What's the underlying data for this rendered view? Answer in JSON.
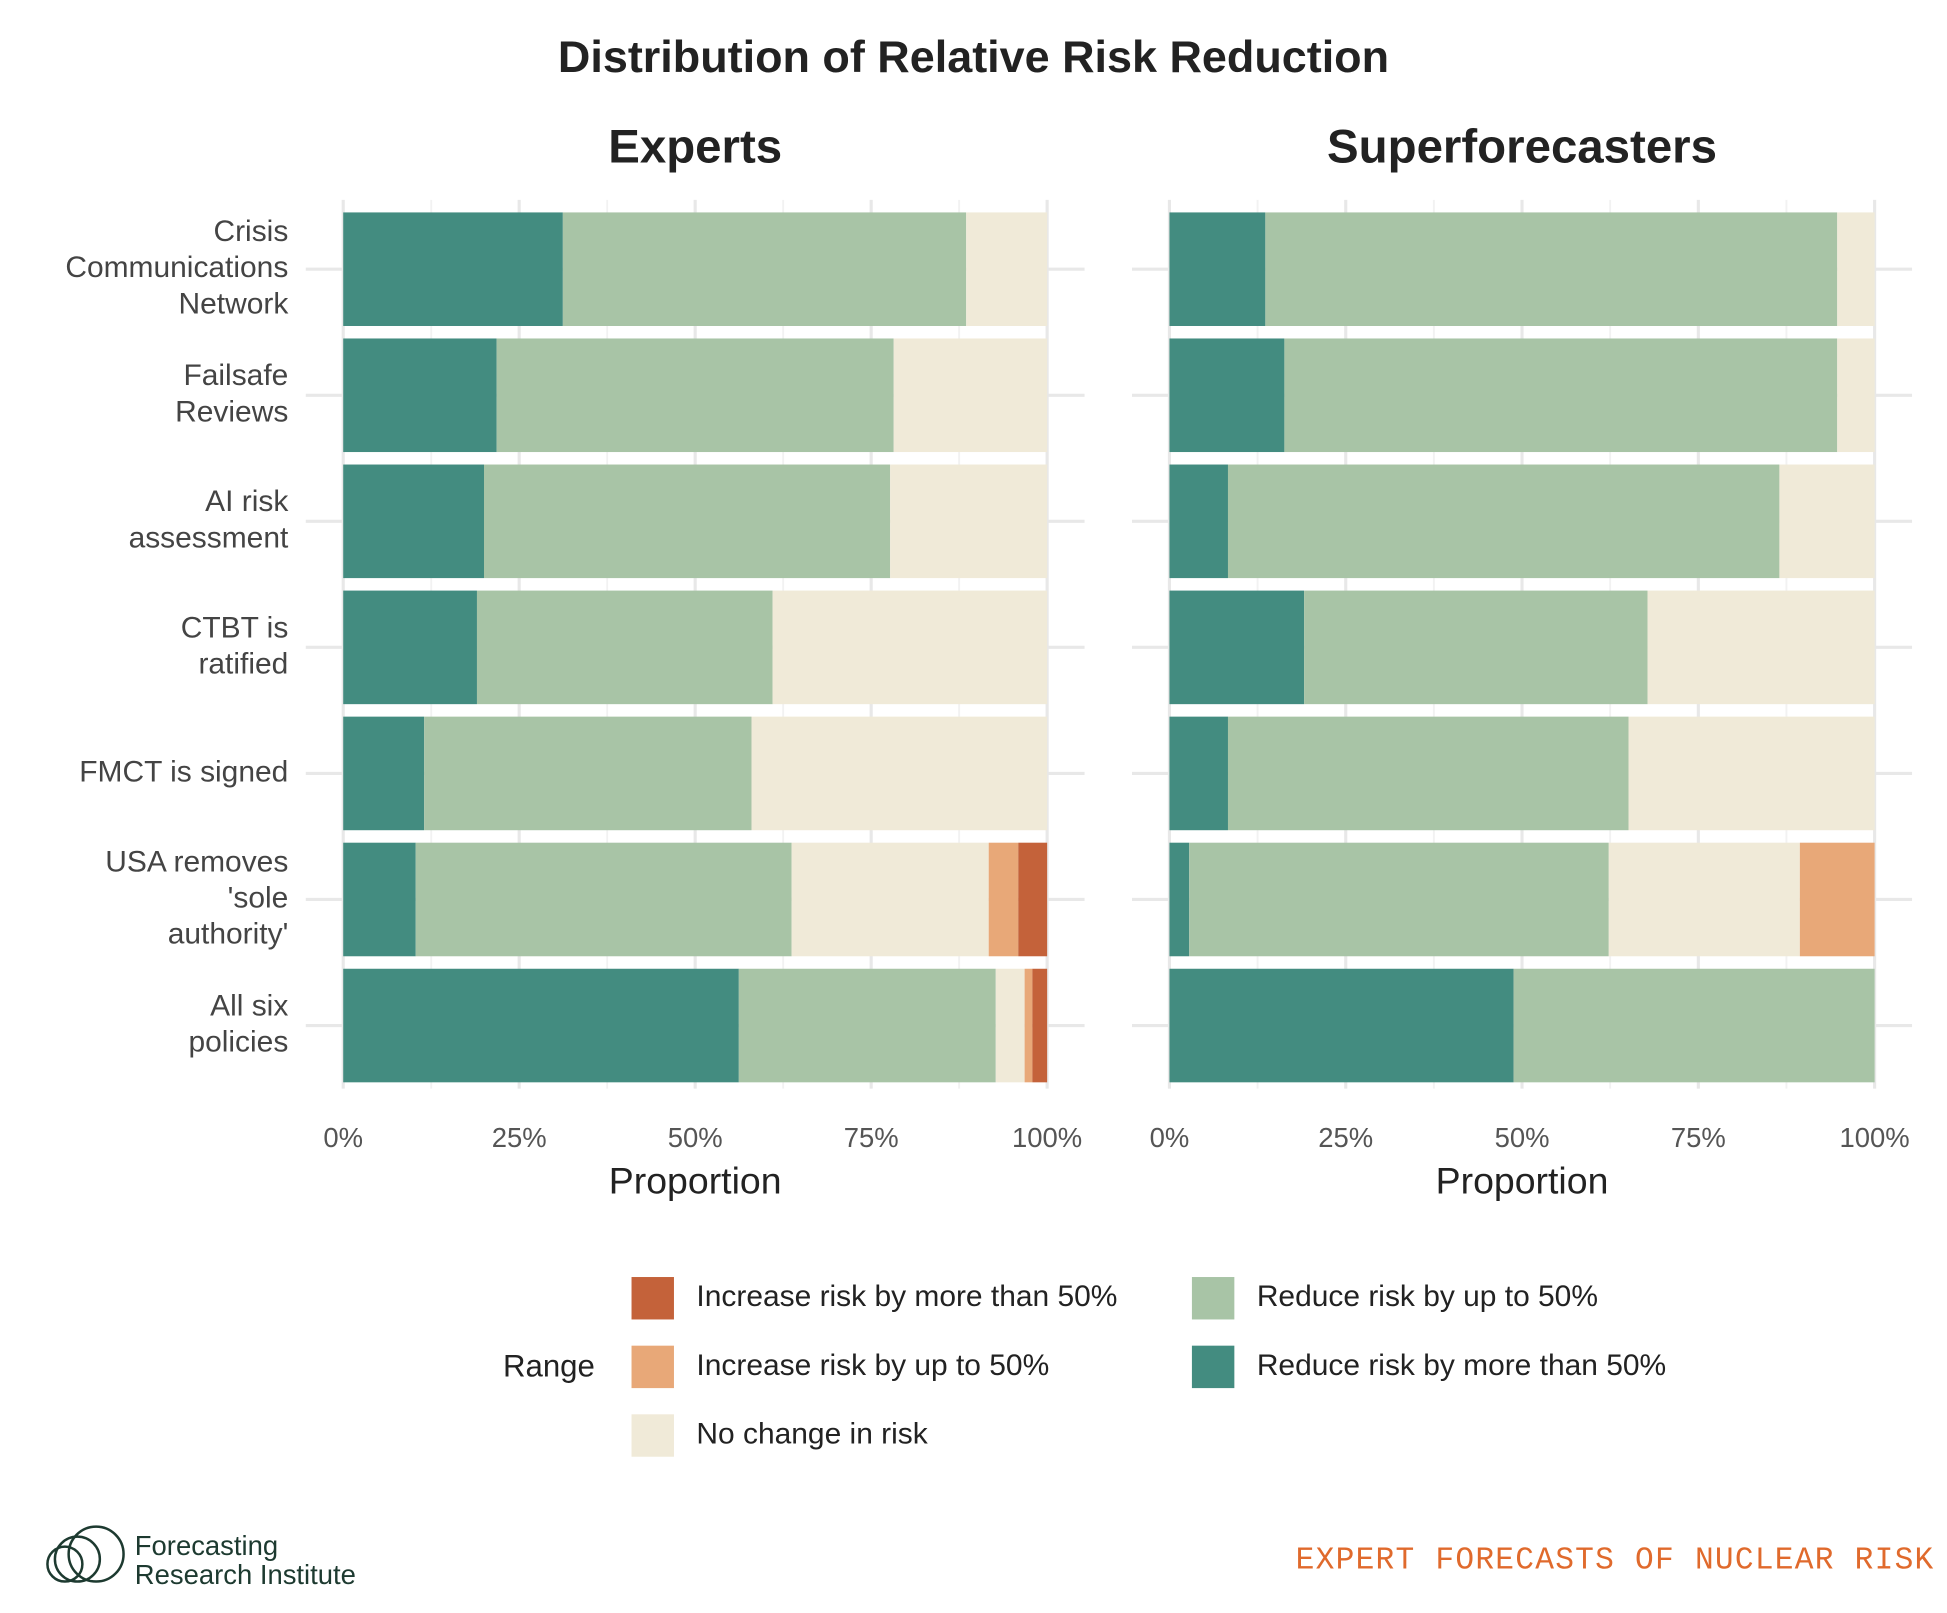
{
  "title": "Distribution of Relative Risk Reduction",
  "legend_title": "Range",
  "footer": {
    "logo_line1": "Forecasting",
    "logo_line2": "Research Institute",
    "tagline": "EXPERT FORECASTS OF NUCLEAR RISK"
  },
  "chart_data": [
    {
      "type": "bar",
      "orientation": "horizontal",
      "stacked": true,
      "title": "Experts",
      "xlabel": "Proportion",
      "categories": [
        "Crisis\nCommunications\nNetwork",
        "Failsafe\nReviews",
        "AI risk\nassessment",
        "CTBT is\nratified",
        "FMCT is signed",
        "USA removes\n'sole\nauthority'",
        "All six\npolicies"
      ],
      "series": [
        {
          "name": "Reduce risk by more than 50%",
          "color": "#438c80",
          "values": [
            31.2,
            21.8,
            20.0,
            19.0,
            11.5,
            10.3,
            56.2
          ]
        },
        {
          "name": "Reduce risk by up to 50%",
          "color": "#a8c4a6",
          "values": [
            57.3,
            56.4,
            57.7,
            42.0,
            46.5,
            53.4,
            36.5
          ]
        },
        {
          "name": "No change in risk",
          "color": "#f0ead8",
          "values": [
            11.5,
            21.8,
            22.3,
            39.0,
            42.0,
            28.0,
            4.1
          ]
        },
        {
          "name": "Increase risk by up to 50%",
          "color": "#e8a878",
          "values": [
            0,
            0,
            0,
            0,
            0,
            4.2,
            1.1
          ]
        },
        {
          "name": "Increase risk by more than 50%",
          "color": "#c4623a",
          "values": [
            0,
            0,
            0,
            0,
            0,
            4.1,
            2.1
          ]
        }
      ],
      "xlim": [
        0,
        100
      ],
      "xticks": [
        {
          "value": 0,
          "label": "0%"
        },
        {
          "value": 25,
          "label": "25%"
        },
        {
          "value": 50,
          "label": "50%"
        },
        {
          "value": 75,
          "label": "75%"
        },
        {
          "value": 100,
          "label": "100%"
        }
      ],
      "grid": true
    },
    {
      "type": "bar",
      "orientation": "horizontal",
      "stacked": true,
      "title": "Superforecasters",
      "xlabel": "Proportion",
      "series": [
        {
          "color": "#438c80",
          "values": [
            13.6,
            16.3,
            8.3,
            19.1,
            8.3,
            2.8,
            48.8
          ]
        },
        {
          "color": "#a8c4a6",
          "values": [
            81.1,
            78.4,
            78.2,
            48.7,
            56.8,
            59.5,
            51.2
          ]
        },
        {
          "color": "#f0ead8",
          "values": [
            5.3,
            5.3,
            13.5,
            32.2,
            34.9,
            27.1,
            0
          ]
        },
        {
          "color": "#e8a878",
          "values": [
            0,
            0,
            0,
            0,
            0,
            10.6,
            0
          ]
        },
        {
          "color": "#c4623a",
          "values": [
            0,
            0,
            0,
            0,
            0,
            0,
            0
          ]
        }
      ],
      "xlim": [
        0,
        100
      ],
      "xticks": [
        {
          "value": 0,
          "label": "0%"
        },
        {
          "value": 25,
          "label": "25%"
        },
        {
          "value": 50,
          "label": "50%"
        },
        {
          "value": 75,
          "label": "75%"
        },
        {
          "value": 100,
          "label": "100%"
        }
      ],
      "grid": true
    }
  ]
}
